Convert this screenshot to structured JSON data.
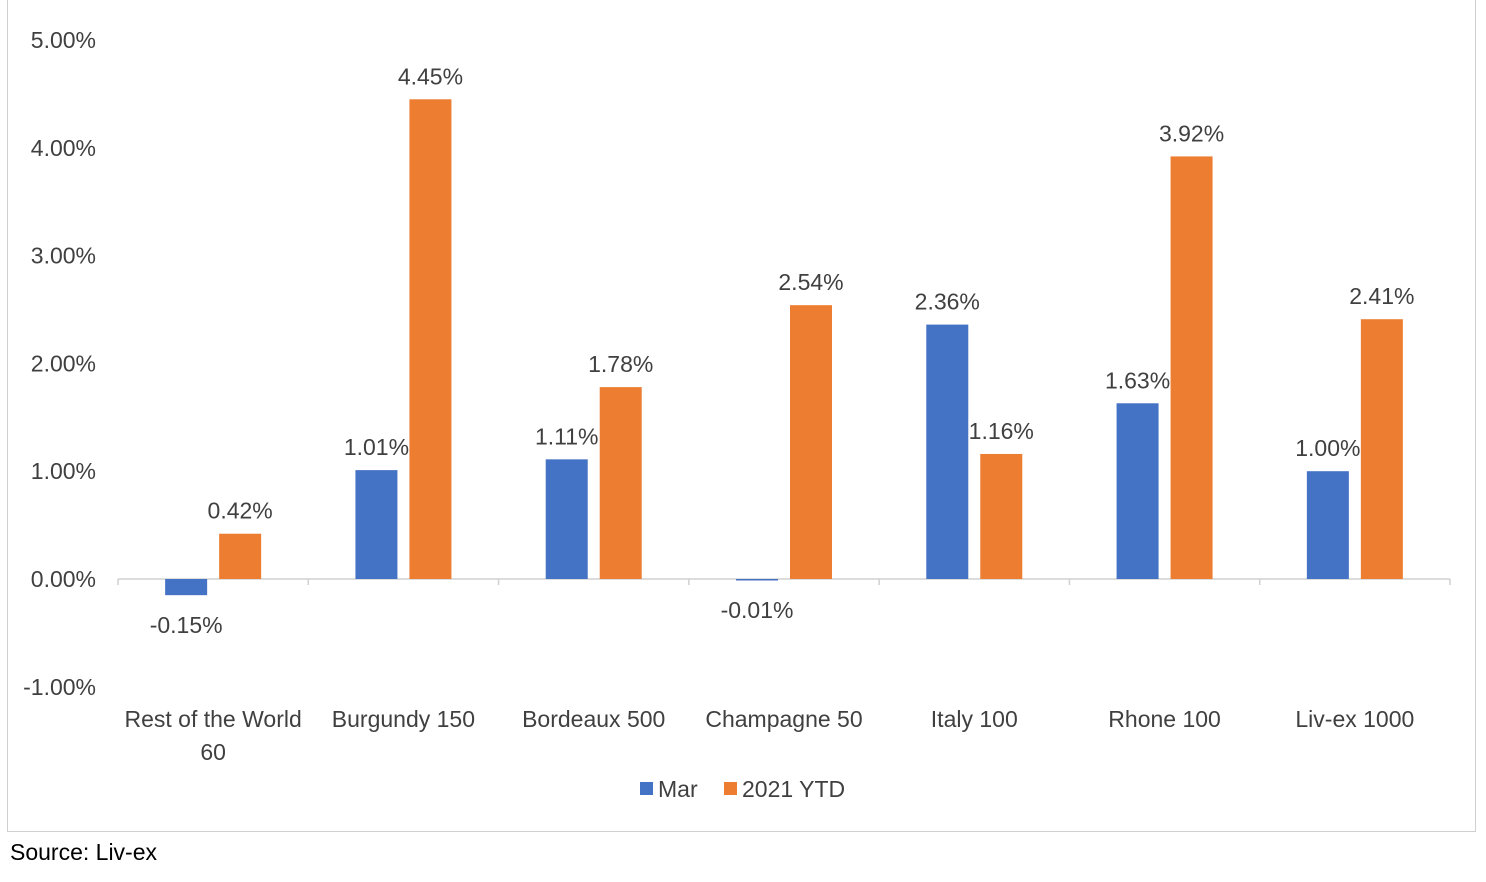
{
  "chart_data": {
    "type": "bar",
    "categories": [
      [
        "Rest of the World",
        "60"
      ],
      [
        "Burgundy 150"
      ],
      [
        "Bordeaux 500"
      ],
      [
        "Champagne 50"
      ],
      [
        "Italy 100"
      ],
      [
        "Rhone 100"
      ],
      [
        "Liv-ex 1000"
      ]
    ],
    "series": [
      {
        "name": "Mar",
        "color": "#4472C4",
        "values": [
          -0.15,
          1.01,
          1.11,
          -0.01,
          2.36,
          1.63,
          1.0
        ],
        "labels": [
          "-0.15%",
          "1.01%",
          "1.11%",
          "-0.01%",
          "2.36%",
          "1.63%",
          "1.00%"
        ]
      },
      {
        "name": "2021 YTD",
        "color": "#ED7D31",
        "values": [
          0.42,
          4.45,
          1.78,
          2.54,
          1.16,
          3.92,
          2.41
        ],
        "labels": [
          "0.42%",
          "4.45%",
          "1.78%",
          "2.54%",
          "1.16%",
          "3.92%",
          "2.41%"
        ]
      }
    ],
    "ylim": [
      -1,
      5
    ],
    "yticks": [
      {
        "value": 5,
        "label": "5.00%"
      },
      {
        "value": 4,
        "label": "4.00%"
      },
      {
        "value": 3,
        "label": "3.00%"
      },
      {
        "value": 2,
        "label": "2.00%"
      },
      {
        "value": 1,
        "label": "1.00%"
      },
      {
        "value": 0,
        "label": "0.00%"
      },
      {
        "value": -1,
        "label": "-1.00%"
      }
    ],
    "grid": false,
    "legend_position": "bottom",
    "source": "Source: Liv-ex"
  }
}
